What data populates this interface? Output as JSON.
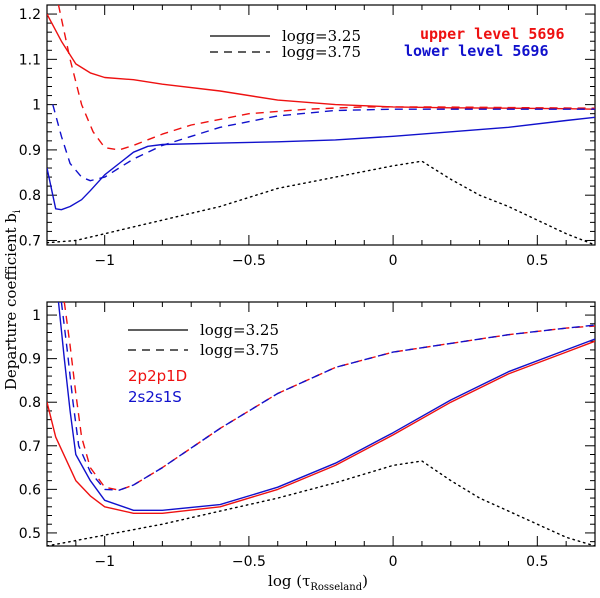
{
  "colors": {
    "red": "#ee1111",
    "blue": "#1111cc",
    "black": "#000000"
  },
  "chart_data": [
    {
      "type": "line",
      "title": "",
      "xlabel": "log (τRosseland)",
      "ylabel": "Departure coefficient b_i",
      "xlim": [
        -1.2,
        0.7
      ],
      "ylim": [
        0.69,
        1.22
      ],
      "xticks": [
        -1,
        -0.5,
        0,
        0.5
      ],
      "xtick_labels": [
        "−1",
        "−0.5",
        "0",
        "0.5"
      ],
      "yticks": [
        0.7,
        0.8,
        0.9,
        1,
        1.1,
        1.2
      ],
      "ytick_labels": [
        "0.7",
        "0.8",
        "0.9",
        "1",
        "1.1",
        "1.2"
      ],
      "legend": {
        "position": "top",
        "styles": [
          "logg=3.25",
          "logg=3.75"
        ],
        "labels": [
          "upper level 5696",
          "lower level 5696"
        ]
      },
      "series": [
        {
          "name": "upper level 5696 logg=3.25",
          "color": "red",
          "dash": "solid",
          "x": [
            -1.2,
            -1.15,
            -1.1,
            -1.05,
            -1,
            -0.9,
            -0.8,
            -0.6,
            -0.4,
            -0.2,
            0,
            0.2,
            0.4,
            0.6,
            0.7
          ],
          "y": [
            1.2,
            1.14,
            1.09,
            1.07,
            1.06,
            1.055,
            1.045,
            1.03,
            1.01,
            1.0,
            0.995,
            0.993,
            0.992,
            0.991,
            0.99
          ]
        },
        {
          "name": "upper level 5696 logg=3.75",
          "color": "red",
          "dash": "dashed",
          "x": [
            -1.16,
            -1.12,
            -1.08,
            -1.04,
            -1,
            -0.95,
            -0.9,
            -0.8,
            -0.7,
            -0.5,
            -0.3,
            -0.1,
            0.1,
            0.3,
            0.5,
            0.7
          ],
          "y": [
            1.22,
            1.1,
            1.0,
            0.94,
            0.905,
            0.9,
            0.91,
            0.935,
            0.955,
            0.98,
            0.99,
            0.995,
            0.995,
            0.994,
            0.993,
            0.992
          ]
        },
        {
          "name": "lower level 5696 logg=3.25",
          "color": "blue",
          "dash": "solid",
          "x": [
            -1.2,
            -1.17,
            -1.15,
            -1.12,
            -1.08,
            -1.05,
            -1,
            -0.95,
            -0.9,
            -0.85,
            -0.8,
            -0.6,
            -0.4,
            -0.2,
            0,
            0.2,
            0.4,
            0.6,
            0.7
          ],
          "y": [
            0.86,
            0.77,
            0.768,
            0.775,
            0.79,
            0.81,
            0.845,
            0.87,
            0.895,
            0.908,
            0.912,
            0.915,
            0.918,
            0.922,
            0.93,
            0.94,
            0.95,
            0.965,
            0.972
          ]
        },
        {
          "name": "lower level 5696 logg=3.75",
          "color": "blue",
          "dash": "dashed",
          "x": [
            -1.18,
            -1.15,
            -1.12,
            -1.08,
            -1.05,
            -1,
            -0.95,
            -0.9,
            -0.8,
            -0.6,
            -0.4,
            -0.2,
            0,
            0.2,
            0.4,
            0.6,
            0.7
          ],
          "y": [
            1.0,
            0.93,
            0.87,
            0.84,
            0.832,
            0.84,
            0.86,
            0.88,
            0.91,
            0.95,
            0.975,
            0.987,
            0.99,
            0.99,
            0.99,
            0.99,
            0.99
          ]
        },
        {
          "name": "reference dotted",
          "color": "black",
          "dash": "dotted",
          "x": [
            -1.2,
            -1.1,
            -1,
            -0.8,
            -0.6,
            -0.4,
            -0.2,
            0,
            0.1,
            0.2,
            0.3,
            0.4,
            0.5,
            0.6,
            0.7
          ],
          "y": [
            0.695,
            0.7,
            0.715,
            0.745,
            0.775,
            0.815,
            0.84,
            0.865,
            0.875,
            0.835,
            0.8,
            0.775,
            0.745,
            0.715,
            0.69
          ]
        }
      ]
    },
    {
      "type": "line",
      "title": "",
      "xlabel": "log (τRosseland)",
      "ylabel": "Departure coefficient b_i",
      "xlim": [
        -1.2,
        0.7
      ],
      "ylim": [
        0.47,
        1.03
      ],
      "xticks": [
        -1,
        -0.5,
        0,
        0.5
      ],
      "xtick_labels": [
        "−1",
        "−0.5",
        "0",
        "0.5"
      ],
      "yticks": [
        0.5,
        0.6,
        0.7,
        0.8,
        0.9,
        1
      ],
      "ytick_labels": [
        "0.5",
        "0.6",
        "0.7",
        "0.8",
        "0.9",
        "1"
      ],
      "legend": {
        "position": "top-left",
        "styles": [
          "logg=3.25",
          "logg=3.75"
        ],
        "labels": [
          "2p2p1D",
          "2s2s1S"
        ]
      },
      "series": [
        {
          "name": "2p2p1D logg=3.25",
          "color": "red",
          "dash": "solid",
          "x": [
            -1.2,
            -1.17,
            -1.1,
            -1.05,
            -1,
            -0.9,
            -0.8,
            -0.6,
            -0.4,
            -0.2,
            0,
            0.2,
            0.4,
            0.6,
            0.7
          ],
          "y": [
            0.8,
            0.72,
            0.62,
            0.585,
            0.56,
            0.545,
            0.545,
            0.56,
            0.6,
            0.655,
            0.725,
            0.8,
            0.865,
            0.915,
            0.94
          ]
        },
        {
          "name": "2p2p1D logg=3.75",
          "color": "red",
          "dash": "dashed",
          "x": [
            -1.14,
            -1.12,
            -1.1,
            -1.08,
            -1.05,
            -1,
            -0.95,
            -0.9,
            -0.8,
            -0.6,
            -0.4,
            -0.2,
            0,
            0.2,
            0.4,
            0.6,
            0.7
          ],
          "y": [
            1.03,
            0.93,
            0.82,
            0.72,
            0.65,
            0.605,
            0.598,
            0.61,
            0.65,
            0.74,
            0.82,
            0.88,
            0.915,
            0.935,
            0.955,
            0.97,
            0.975
          ]
        },
        {
          "name": "2s2s1S logg=3.25",
          "color": "blue",
          "dash": "solid",
          "x": [
            -1.16,
            -1.14,
            -1.12,
            -1.1,
            -1.05,
            -1,
            -0.9,
            -0.8,
            -0.6,
            -0.4,
            -0.2,
            0,
            0.2,
            0.4,
            0.6,
            0.7
          ],
          "y": [
            1.03,
            0.9,
            0.78,
            0.68,
            0.62,
            0.575,
            0.552,
            0.552,
            0.565,
            0.605,
            0.66,
            0.73,
            0.805,
            0.87,
            0.92,
            0.945
          ]
        },
        {
          "name": "2s2s1S logg=3.75",
          "color": "blue",
          "dash": "dashed",
          "x": [
            -1.15,
            -1.13,
            -1.11,
            -1.09,
            -1.05,
            -1,
            -0.95,
            -0.9,
            -0.8,
            -0.6,
            -0.4,
            -0.2,
            0,
            0.2,
            0.4,
            0.6,
            0.7
          ],
          "y": [
            1.03,
            0.92,
            0.8,
            0.7,
            0.64,
            0.6,
            0.598,
            0.61,
            0.65,
            0.74,
            0.82,
            0.88,
            0.915,
            0.935,
            0.955,
            0.97,
            0.977
          ]
        },
        {
          "name": "reference dotted",
          "color": "black",
          "dash": "dotted",
          "x": [
            -1.2,
            -1,
            -0.8,
            -0.6,
            -0.4,
            -0.2,
            0,
            0.1,
            0.2,
            0.3,
            0.4,
            0.5,
            0.6,
            0.7
          ],
          "y": [
            0.47,
            0.495,
            0.52,
            0.55,
            0.58,
            0.615,
            0.655,
            0.665,
            0.62,
            0.58,
            0.55,
            0.52,
            0.49,
            0.47
          ]
        }
      ]
    }
  ],
  "labels": {
    "ylabel": "Departure coefficient b",
    "ylabel_sub": "i",
    "xlabel_prefix": "log (τ",
    "xlabel_sub": "Rosseland",
    "xlabel_suffix": ")",
    "top": {
      "legend_solid": "logg=3.25",
      "legend_dashed": "logg=3.75",
      "upper_level": "upper level 5696",
      "lower_level": "lower level 5696"
    },
    "bottom": {
      "legend_solid": "logg=3.25",
      "legend_dashed": "logg=3.75",
      "level_1d": "2p2p1D",
      "level_1s": "2s2s1S"
    }
  }
}
